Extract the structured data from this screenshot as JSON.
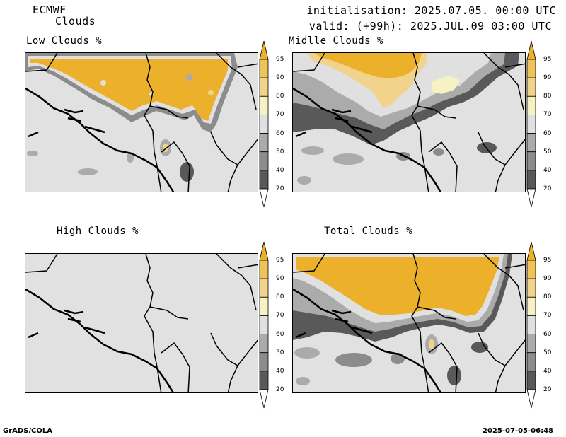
{
  "header": {
    "model": "ECMWF",
    "product": "Clouds",
    "init": "initialisation: 2025.07.05. 00:00 UTC",
    "valid": "valid: (+99h): 2025.JUL.09 03:00 UTC"
  },
  "panels": [
    {
      "title": "Low Clouds %"
    },
    {
      "title": "Midlle Clouds %"
    },
    {
      "title": "High Clouds %"
    },
    {
      "title": "Total Clouds %"
    }
  ],
  "colorbar": {
    "levels": [
      "20",
      "40",
      "50",
      "60",
      "70",
      "80",
      "90",
      "95"
    ],
    "colors": {
      "below20": "#ffffff",
      "20-40": "#595959",
      "40-50": "#8c8c8c",
      "50-60": "#ababab",
      "60-70": "#e0e0e0",
      "70-80": "#f7f2c4",
      "80-90": "#f2d38c",
      "90-95": "#f0c25a",
      "above95": "#ecb02a"
    }
  },
  "footer": {
    "left": "GrADS/COLA",
    "right": "2025-07-05-06:48"
  }
}
